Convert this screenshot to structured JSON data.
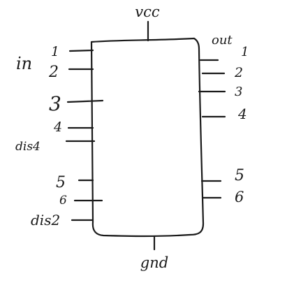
{
  "chip": {
    "top_pin_label": "vcc",
    "bottom_pin_label": "gnd"
  },
  "left": {
    "group_label": "in",
    "pins": [
      "1",
      "2",
      "3",
      "4"
    ],
    "dis4_label": "dis4",
    "pins_lower": [
      "5",
      "6"
    ],
    "dis2_label": "dis2"
  },
  "right": {
    "group_label": "out",
    "pins": [
      "1",
      "2",
      "3",
      "4",
      "5",
      "6"
    ]
  },
  "colors": {
    "ink": "#1a1a1a",
    "background": "#ffffff"
  }
}
